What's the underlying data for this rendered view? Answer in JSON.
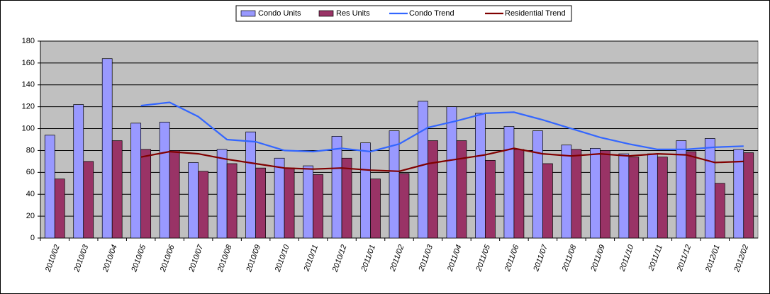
{
  "chart_data": {
    "type": "bar",
    "categories": [
      "2010/02",
      "2010/03",
      "2010/04",
      "2010/05",
      "2010/06",
      "2010/07",
      "2010/08",
      "2010/09",
      "2010/10",
      "2010/11",
      "2010/12",
      "2011/01",
      "2011/02",
      "2011/03",
      "2011/04",
      "2011/05",
      "2011/06",
      "2011/07",
      "2011/08",
      "2011/09",
      "2011/10",
      "2011/11",
      "2011/12",
      "2012/01",
      "2012/02"
    ],
    "series": [
      {
        "name": "Condo Units",
        "type": "bar",
        "color": "#9999ff",
        "values": [
          94,
          122,
          164,
          105,
          106,
          69,
          81,
          97,
          73,
          66,
          93,
          87,
          98,
          125,
          120,
          114,
          102,
          98,
          85,
          82,
          77,
          77,
          89,
          91,
          81
        ]
      },
      {
        "name": "Res Units",
        "type": "bar",
        "color": "#993366",
        "values": [
          54,
          70,
          89,
          81,
          80,
          61,
          68,
          64,
          64,
          58,
          73,
          54,
          59,
          89,
          89,
          71,
          81,
          68,
          81,
          80,
          74,
          74,
          79,
          50,
          78
        ]
      },
      {
        "name": "Condo Trend",
        "type": "line",
        "color": "#3366ff",
        "values": [
          null,
          null,
          null,
          121,
          124,
          111,
          90,
          88,
          80,
          79,
          82,
          79,
          86,
          101,
          107,
          114,
          115,
          108,
          100,
          92,
          86,
          81,
          81,
          83,
          84
        ]
      },
      {
        "name": "Residential Trend",
        "type": "line",
        "color": "#800000",
        "values": [
          null,
          null,
          null,
          74,
          79,
          77,
          72,
          68,
          64,
          63,
          64,
          62,
          61,
          68,
          72,
          76,
          82,
          77,
          75,
          77,
          75,
          77,
          76,
          69,
          70
        ]
      }
    ],
    "ylim": [
      0,
      180
    ],
    "yticks": [
      0,
      20,
      40,
      60,
      80,
      100,
      120,
      140,
      160,
      180
    ],
    "grid": true,
    "legend": "top"
  }
}
